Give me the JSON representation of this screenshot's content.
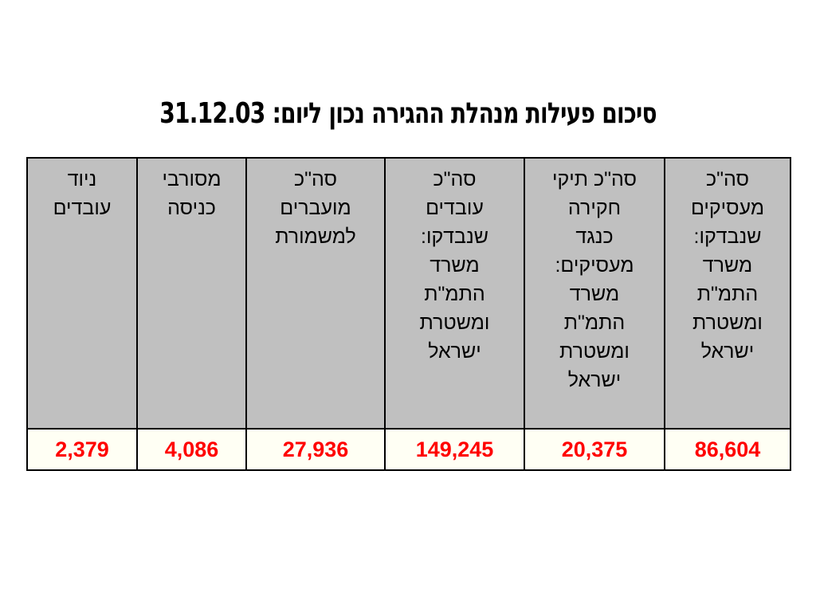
{
  "title": "סיכום פעילות מנהלת ההגירה נכון ליום: 31.12.03",
  "table": {
    "columns": [
      {
        "header": "סה\"כ\nמעסיקים\nשנבדקו:\nמשרד\nהתמ\"ת\nומשטרת\nישראל",
        "value": "86,604"
      },
      {
        "header": "סה\"כ תיקי\nחקירה\nכנגד\nמעסיקים:\nמשרד\nהתמ\"ת\nומשטרת\nישראל",
        "value": "20,375"
      },
      {
        "header": "סה\"כ\nעובדים\nשנבדקו:\nמשרד\nהתמ\"ת\nומשטרת\nישראל",
        "value": "149,245"
      },
      {
        "header": "סה\"כ\nמועברים\nלמשמורת",
        "value": "27,936"
      },
      {
        "header": "מסורבי\nכניסה",
        "value": "4,086"
      },
      {
        "header": "ניוד\nעובדים",
        "value": "2,379"
      }
    ]
  },
  "colors": {
    "header_background": "#c0c0c0",
    "value_background": "#fffff4",
    "value_text": "#ff0000",
    "border": "#000000"
  }
}
